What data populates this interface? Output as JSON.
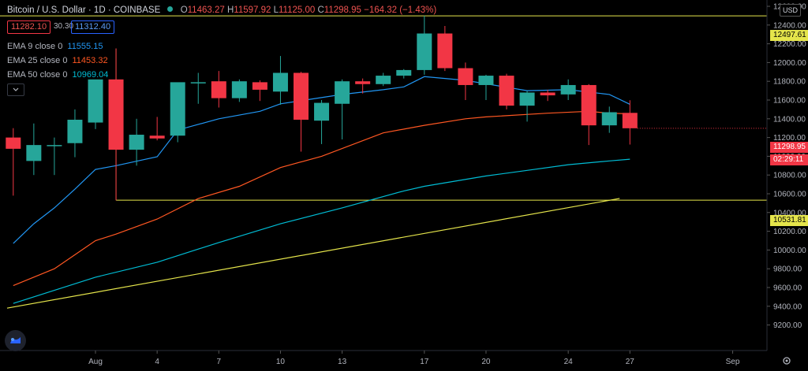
{
  "header": {
    "symbol": "Bitcoin / U.S. Dollar · 1D · COINBASE",
    "o_label": "O",
    "o_value": "11463.27",
    "h_label": "H",
    "h_value": "11597.92",
    "l_label": "L",
    "l_value": "11125.00",
    "c_label": "C",
    "c_value": "11298.95",
    "change": "−164.32 (−1.43%)",
    "bid": "11282.10",
    "spread": "30.30",
    "ask": "11312.40"
  },
  "indicators": [
    {
      "label": "EMA 9 close 0",
      "value": "11555.15",
      "color": "#2196f3"
    },
    {
      "label": "EMA 25 close 0",
      "value": "11453.32",
      "color": "#ff5722"
    },
    {
      "label": "EMA 50 close 0",
      "value": "10969.04",
      "color": "#00bcd4"
    }
  ],
  "price_tags": {
    "last_price": "11298.95",
    "countdown": "02:29:11",
    "line_upper": "12497.61",
    "line_lower": "10531.81",
    "currency": "USD"
  },
  "colors": {
    "up": "#26a69a",
    "down": "#f23645",
    "hline": "#e5e54b",
    "text": "#b2b5be"
  },
  "icons": [
    "eye-dot-icon",
    "chevron-down-icon",
    "tradingview-logo-icon",
    "settings-gear-icon"
  ],
  "chart_data": {
    "type": "candlestick",
    "y_ticks": [
      12600,
      12400,
      12200,
      12000,
      11800,
      11600,
      11400,
      11200,
      11000,
      10800,
      10600,
      10400,
      10200,
      10000,
      9800,
      9600,
      9400,
      9200
    ],
    "y_top_tick": "12600.00",
    "x_ticks": [
      "Aug",
      "4",
      "7",
      "10",
      "13",
      "17",
      "20",
      "24",
      "27",
      "Sep"
    ],
    "x_tick_index": [
      0,
      3,
      6,
      9,
      12,
      16,
      19,
      23,
      26,
      31
    ],
    "ylim": [
      9100,
      12750
    ],
    "candles": [
      {
        "i": -4,
        "o": 11200,
        "h": 11300,
        "l": 10580,
        "c": 11080
      },
      {
        "i": -3,
        "o": 10950,
        "h": 11350,
        "l": 10800,
        "c": 11120
      },
      {
        "i": -2,
        "o": 11110,
        "h": 11200,
        "l": 10800,
        "c": 11120
      },
      {
        "i": -1,
        "o": 11140,
        "h": 11500,
        "l": 10990,
        "c": 11390
      },
      {
        "i": 0,
        "o": 11360,
        "h": 11800,
        "l": 11290,
        "c": 11820
      },
      {
        "i": 1,
        "o": 11820,
        "h": 12150,
        "l": 10530,
        "c": 11070
      },
      {
        "i": 2,
        "o": 11070,
        "h": 11400,
        "l": 10900,
        "c": 11230
      },
      {
        "i": 3,
        "o": 11220,
        "h": 11420,
        "l": 11170,
        "c": 11190
      },
      {
        "i": 4,
        "o": 11220,
        "h": 11780,
        "l": 11150,
        "c": 11790
      },
      {
        "i": 5,
        "o": 11780,
        "h": 11890,
        "l": 11560,
        "c": 11790
      },
      {
        "i": 6,
        "o": 11800,
        "h": 11910,
        "l": 11520,
        "c": 11620
      },
      {
        "i": 7,
        "o": 11620,
        "h": 11820,
        "l": 11580,
        "c": 11800
      },
      {
        "i": 8,
        "o": 11790,
        "h": 11810,
        "l": 11590,
        "c": 11710
      },
      {
        "i": 9,
        "o": 11690,
        "h": 12070,
        "l": 11550,
        "c": 11890
      },
      {
        "i": 10,
        "o": 11890,
        "h": 11900,
        "l": 11050,
        "c": 11390
      },
      {
        "i": 11,
        "o": 11380,
        "h": 11600,
        "l": 11130,
        "c": 11570
      },
      {
        "i": 12,
        "o": 11560,
        "h": 11820,
        "l": 11180,
        "c": 11800
      },
      {
        "i": 13,
        "o": 11800,
        "h": 11830,
        "l": 11670,
        "c": 11770
      },
      {
        "i": 14,
        "o": 11770,
        "h": 11890,
        "l": 11750,
        "c": 11860
      },
      {
        "i": 15,
        "o": 11860,
        "h": 11930,
        "l": 11830,
        "c": 11920
      },
      {
        "i": 16,
        "o": 11920,
        "h": 12500,
        "l": 11870,
        "c": 12310
      },
      {
        "i": 17,
        "o": 12310,
        "h": 12390,
        "l": 11910,
        "c": 11940
      },
      {
        "i": 18,
        "o": 11940,
        "h": 12000,
        "l": 11600,
        "c": 11760
      },
      {
        "i": 19,
        "o": 11760,
        "h": 11870,
        "l": 11600,
        "c": 11860
      },
      {
        "i": 20,
        "o": 11860,
        "h": 11880,
        "l": 11500,
        "c": 11540
      },
      {
        "i": 21,
        "o": 11540,
        "h": 11700,
        "l": 11370,
        "c": 11680
      },
      {
        "i": 22,
        "o": 11680,
        "h": 11710,
        "l": 11590,
        "c": 11650
      },
      {
        "i": 23,
        "o": 11660,
        "h": 11820,
        "l": 11600,
        "c": 11760
      },
      {
        "i": 24,
        "o": 11760,
        "h": 11770,
        "l": 11120,
        "c": 11330
      },
      {
        "i": 25,
        "o": 11330,
        "h": 11530,
        "l": 11250,
        "c": 11470
      },
      {
        "i": 26,
        "o": 11463.27,
        "h": 11597.92,
        "l": 11125.0,
        "c": 11298.95
      }
    ],
    "hlines": [
      12497.61,
      10531.81
    ],
    "hline_lower_start_index": 1,
    "ema9": [
      [
        -4,
        10070
      ],
      [
        -3,
        10280
      ],
      [
        -2,
        10450
      ],
      [
        -1,
        10650
      ],
      [
        0,
        10860
      ],
      [
        1,
        10900
      ],
      [
        3,
        10995
      ],
      [
        4,
        11280
      ],
      [
        6,
        11400
      ],
      [
        8,
        11480
      ],
      [
        9,
        11560
      ],
      [
        12,
        11660
      ],
      [
        14,
        11710
      ],
      [
        15,
        11740
      ],
      [
        16,
        11850
      ],
      [
        17,
        11830
      ],
      [
        18,
        11810
      ],
      [
        21,
        11700
      ],
      [
        23,
        11710
      ],
      [
        25,
        11660
      ],
      [
        26,
        11555
      ]
    ],
    "ema25": [
      [
        -4,
        9620
      ],
      [
        -2,
        9800
      ],
      [
        -1,
        9950
      ],
      [
        0,
        10100
      ],
      [
        1,
        10170
      ],
      [
        3,
        10330
      ],
      [
        5,
        10550
      ],
      [
        7,
        10680
      ],
      [
        9,
        10880
      ],
      [
        11,
        11000
      ],
      [
        14,
        11250
      ],
      [
        16,
        11330
      ],
      [
        18,
        11400
      ],
      [
        19,
        11420
      ],
      [
        22,
        11460
      ],
      [
        24,
        11480
      ],
      [
        25,
        11460
      ],
      [
        26,
        11453
      ]
    ],
    "ema50": [
      [
        -4,
        9430
      ],
      [
        -2,
        9570
      ],
      [
        0,
        9710
      ],
      [
        3,
        9870
      ],
      [
        6,
        10080
      ],
      [
        9,
        10280
      ],
      [
        12,
        10450
      ],
      [
        15,
        10630
      ],
      [
        16,
        10680
      ],
      [
        19,
        10790
      ],
      [
        21,
        10850
      ],
      [
        23,
        10910
      ],
      [
        25,
        10950
      ],
      [
        26,
        10969
      ]
    ],
    "trendline": [
      [
        -4.3,
        9380
      ],
      [
        25.5,
        10550
      ]
    ]
  }
}
